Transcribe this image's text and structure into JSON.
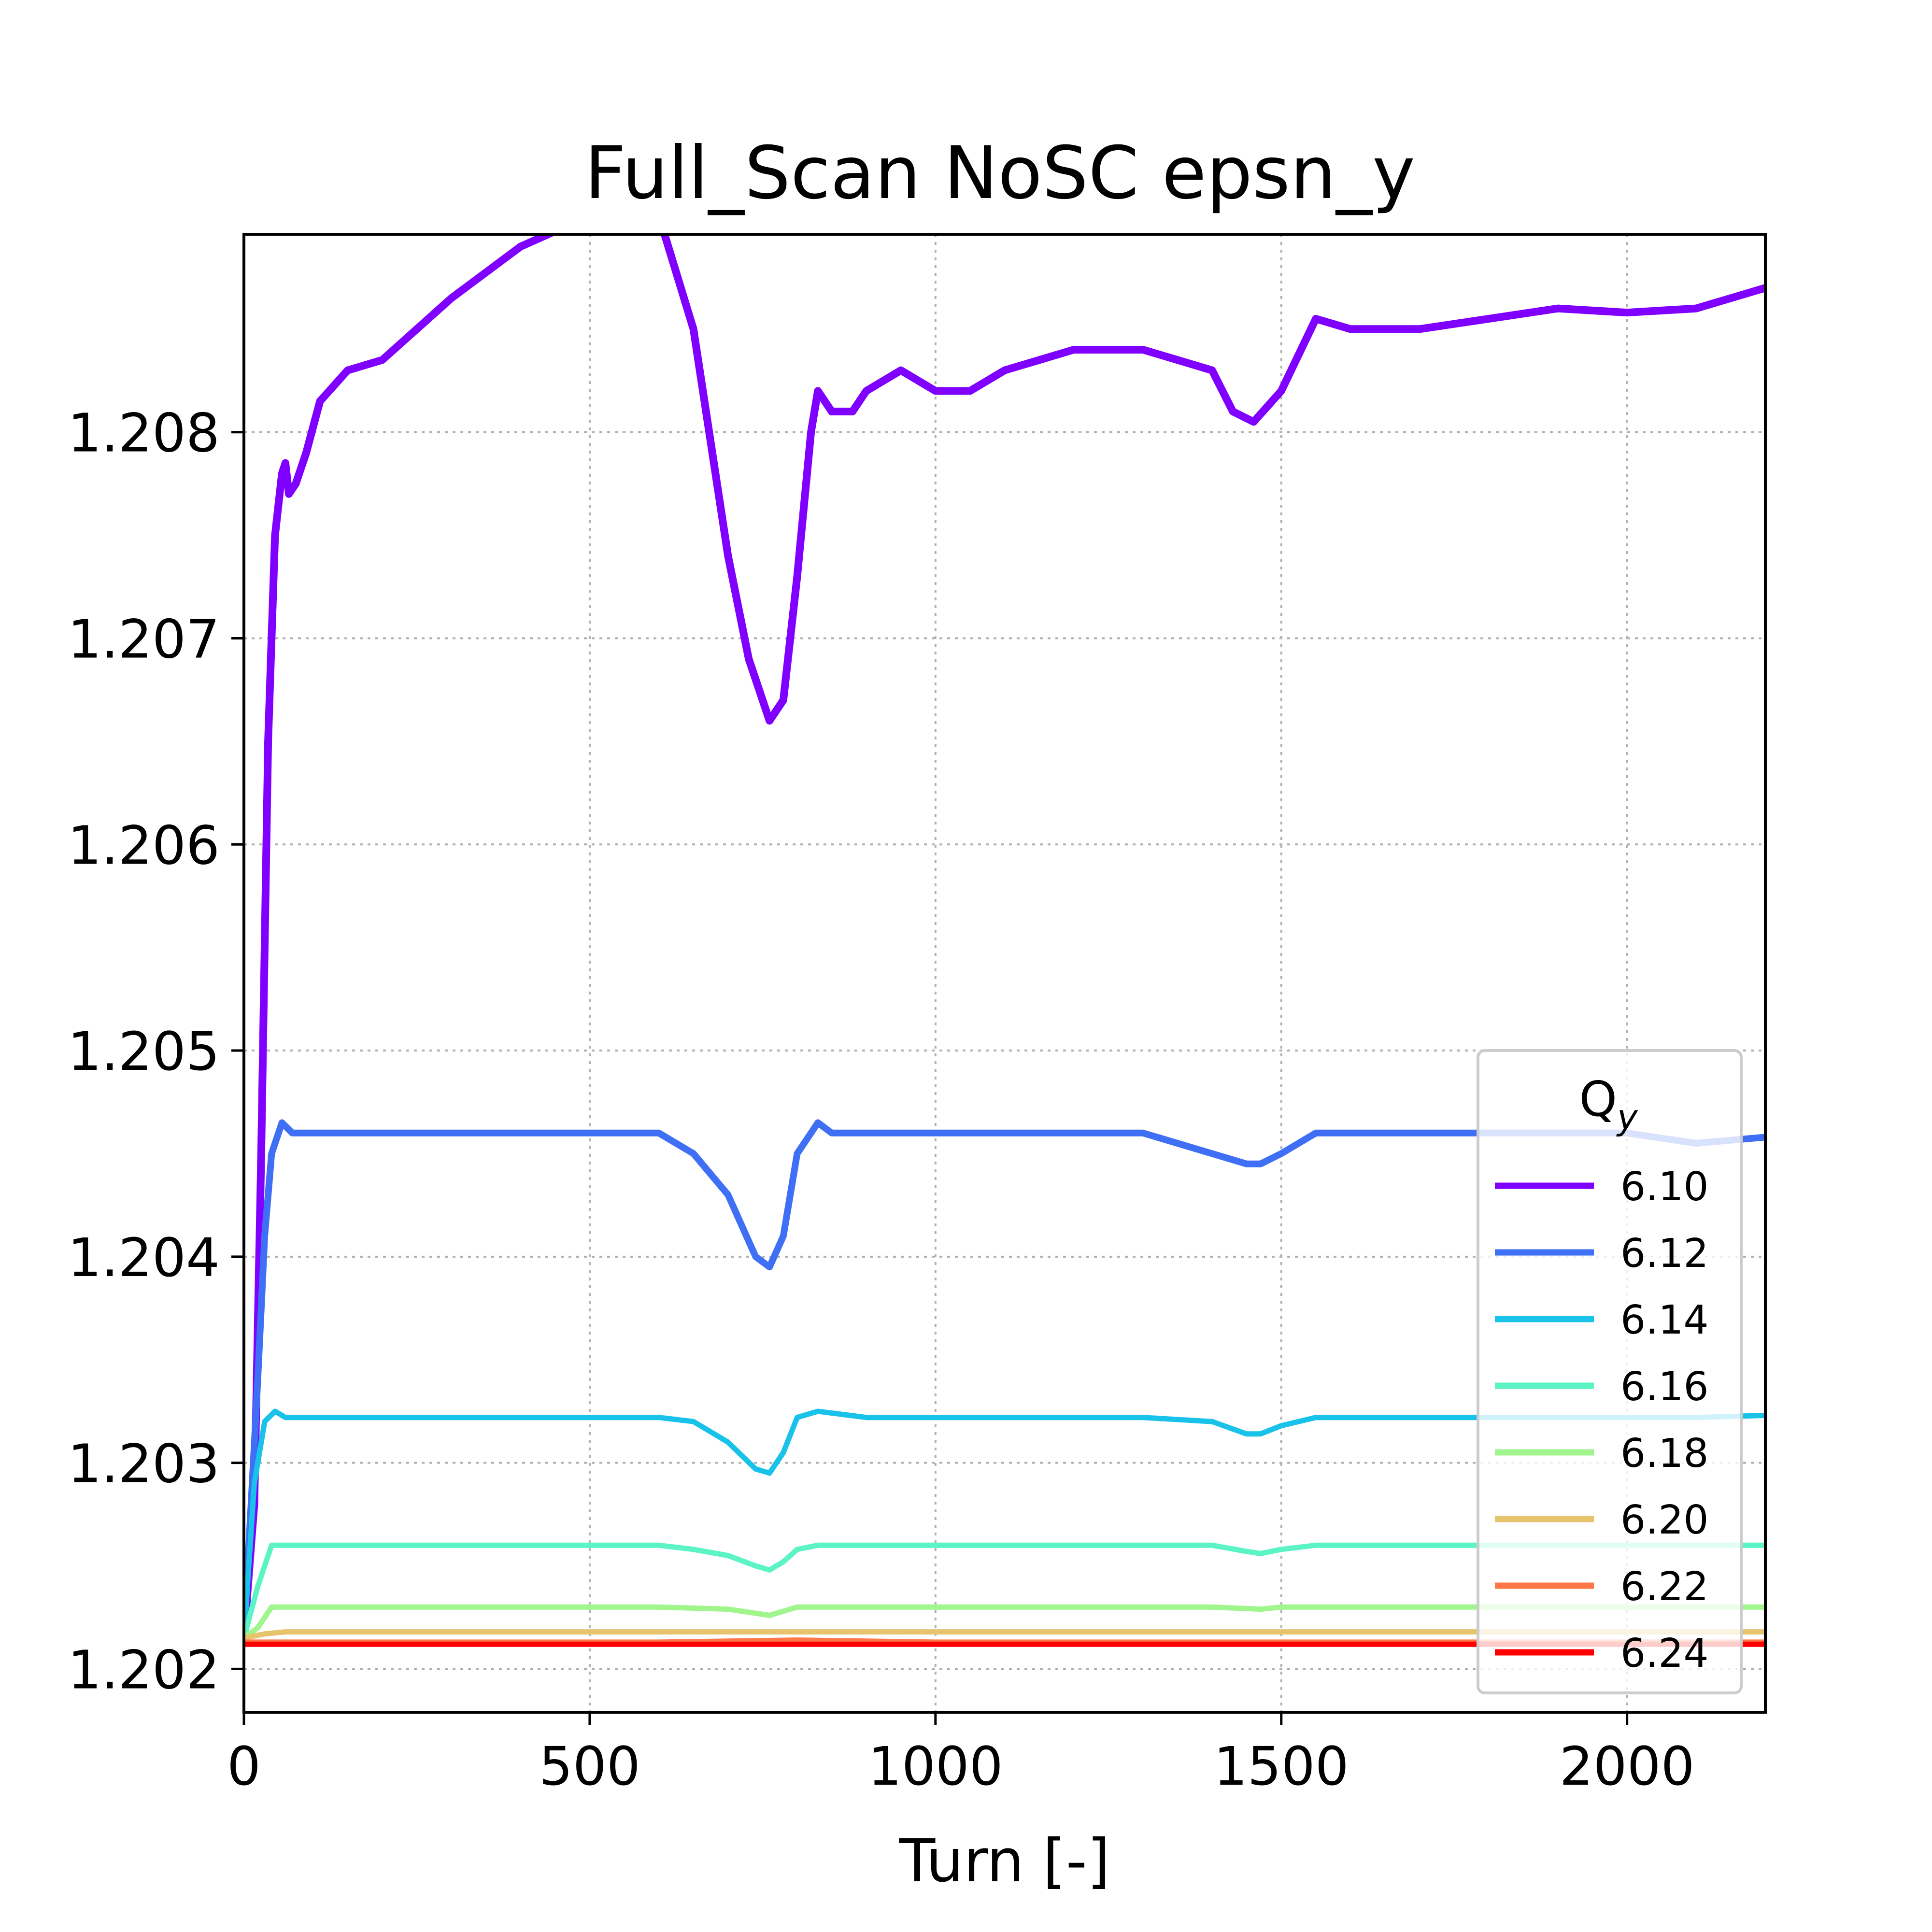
{
  "chart_data": {
    "type": "line",
    "title": "Full_Scan NoSC epsn_y",
    "xlabel": "Turn [-]",
    "ylabel": "",
    "xlim": [
      0,
      2200
    ],
    "ylim": [
      1.20179,
      1.20896
    ],
    "xticks": [
      0,
      500,
      1000,
      1500,
      2000
    ],
    "xtick_labels": [
      "0",
      "500",
      "1000",
      "1500",
      "2000"
    ],
    "yticks": [
      1.202,
      1.203,
      1.204,
      1.205,
      1.206,
      1.207,
      1.208
    ],
    "ytick_labels": [
      "1.202",
      "1.203",
      "1.204",
      "1.205",
      "1.206",
      "1.207",
      "1.208"
    ],
    "grid": true,
    "legend": {
      "title": "Q",
      "title_subscript": "y",
      "placement": "lower-right"
    },
    "series": [
      {
        "name": "6.10",
        "color": "#8000ff",
        "x": [
          0,
          15,
          25,
          35,
          45,
          55,
          60,
          65,
          75,
          90,
          110,
          150,
          200,
          300,
          400,
          500,
          550,
          600,
          650,
          700,
          730,
          760,
          780,
          800,
          820,
          830,
          850,
          880,
          900,
          950,
          1000,
          1050,
          1100,
          1200,
          1300,
          1400,
          1430,
          1460,
          1500,
          1550,
          1600,
          1700,
          1800,
          1900,
          2000,
          2100,
          2200
        ],
        "y": [
          1.20215,
          1.2028,
          1.2045,
          1.2065,
          1.2075,
          1.2078,
          1.20785,
          1.2077,
          1.20775,
          1.2079,
          1.20815,
          1.2083,
          1.20835,
          1.20865,
          1.2089,
          1.20905,
          1.2091,
          1.20905,
          1.2085,
          1.2074,
          1.2069,
          1.2066,
          1.2067,
          1.2073,
          1.208,
          1.2082,
          1.2081,
          1.2081,
          1.2082,
          1.2083,
          1.2082,
          1.2082,
          1.2083,
          1.2084,
          1.2084,
          1.2083,
          1.2081,
          1.20805,
          1.2082,
          1.20855,
          1.2085,
          1.2085,
          1.20855,
          1.2086,
          1.20858,
          1.2086,
          1.2087
        ]
      },
      {
        "name": "6.12",
        "color": "#3e6ff5",
        "x": [
          0,
          20,
          30,
          40,
          55,
          70,
          100,
          200,
          300,
          400,
          500,
          600,
          650,
          700,
          740,
          760,
          780,
          800,
          830,
          850,
          900,
          1000,
          1100,
          1200,
          1300,
          1400,
          1450,
          1470,
          1500,
          1550,
          1600,
          1700,
          1800,
          1900,
          2000,
          2100,
          2200
        ],
        "y": [
          1.20215,
          1.2034,
          1.2041,
          1.2045,
          1.20465,
          1.2046,
          1.2046,
          1.2046,
          1.2046,
          1.2046,
          1.2046,
          1.2046,
          1.2045,
          1.2043,
          1.204,
          1.20395,
          1.2041,
          1.2045,
          1.20465,
          1.2046,
          1.2046,
          1.2046,
          1.2046,
          1.2046,
          1.2046,
          1.2045,
          1.20445,
          1.20445,
          1.2045,
          1.2046,
          1.2046,
          1.2046,
          1.2046,
          1.2046,
          1.2046,
          1.20455,
          1.20458
        ]
      },
      {
        "name": "6.14",
        "color": "#18c2e8",
        "x": [
          0,
          15,
          30,
          45,
          60,
          100,
          200,
          300,
          400,
          500,
          600,
          650,
          700,
          740,
          760,
          780,
          800,
          830,
          900,
          1000,
          1100,
          1200,
          1300,
          1400,
          1450,
          1470,
          1500,
          1550,
          1600,
          1700,
          1800,
          1900,
          2000,
          2100,
          2200
        ],
        "y": [
          1.20215,
          1.2029,
          1.2032,
          1.20325,
          1.20322,
          1.20322,
          1.20322,
          1.20322,
          1.20322,
          1.20322,
          1.20322,
          1.2032,
          1.2031,
          1.20297,
          1.20295,
          1.20305,
          1.20322,
          1.20325,
          1.20322,
          1.20322,
          1.20322,
          1.20322,
          1.20322,
          1.2032,
          1.20314,
          1.20314,
          1.20318,
          1.20322,
          1.20322,
          1.20322,
          1.20322,
          1.20322,
          1.20322,
          1.20322,
          1.20323
        ]
      },
      {
        "name": "6.16",
        "color": "#5cf4c4",
        "x": [
          0,
          20,
          40,
          60,
          100,
          200,
          400,
          600,
          650,
          700,
          740,
          760,
          780,
          800,
          830,
          900,
          1000,
          1100,
          1200,
          1300,
          1400,
          1450,
          1470,
          1500,
          1550,
          1600,
          1800,
          2000,
          2200
        ],
        "y": [
          1.20215,
          1.2024,
          1.2026,
          1.2026,
          1.2026,
          1.2026,
          1.2026,
          1.2026,
          1.20258,
          1.20255,
          1.2025,
          1.20248,
          1.20252,
          1.20258,
          1.2026,
          1.2026,
          1.2026,
          1.2026,
          1.2026,
          1.2026,
          1.2026,
          1.20257,
          1.20256,
          1.20258,
          1.2026,
          1.2026,
          1.2026,
          1.2026,
          1.2026
        ]
      },
      {
        "name": "6.18",
        "color": "#a0f58c",
        "x": [
          0,
          20,
          40,
          60,
          100,
          200,
          400,
          600,
          700,
          740,
          760,
          780,
          800,
          830,
          900,
          1000,
          1200,
          1400,
          1470,
          1500,
          1550,
          1600,
          1800,
          2000,
          2200
        ],
        "y": [
          1.20215,
          1.2022,
          1.2023,
          1.2023,
          1.2023,
          1.2023,
          1.2023,
          1.2023,
          1.20229,
          1.20227,
          1.20226,
          1.20228,
          1.2023,
          1.2023,
          1.2023,
          1.2023,
          1.2023,
          1.2023,
          1.20229,
          1.2023,
          1.2023,
          1.2023,
          1.2023,
          1.2023,
          1.2023
        ]
      },
      {
        "name": "6.20",
        "color": "#e6c46e",
        "x": [
          0,
          30,
          60,
          100,
          200,
          400,
          600,
          800,
          1000,
          1200,
          1400,
          1600,
          1800,
          2000,
          2200
        ],
        "y": [
          1.20215,
          1.20217,
          1.20218,
          1.20218,
          1.20218,
          1.20218,
          1.20218,
          1.20218,
          1.20218,
          1.20218,
          1.20218,
          1.20218,
          1.20218,
          1.20218,
          1.20218
        ]
      },
      {
        "name": "6.22",
        "color": "#ff7746",
        "x": [
          0,
          200,
          400,
          600,
          800,
          1000,
          1200,
          1400,
          1600,
          1800,
          2000,
          2200
        ],
        "y": [
          1.20213,
          1.20213,
          1.20213,
          1.20213,
          1.20214,
          1.20213,
          1.20213,
          1.20213,
          1.20213,
          1.20213,
          1.20213,
          1.20213
        ]
      },
      {
        "name": "6.24",
        "color": "#ff0000",
        "x": [
          0,
          200,
          400,
          600,
          800,
          1000,
          1200,
          1400,
          1600,
          1800,
          2000,
          2200
        ],
        "y": [
          1.20212,
          1.20212,
          1.20212,
          1.20212,
          1.20212,
          1.20212,
          1.20212,
          1.20212,
          1.20212,
          1.20212,
          1.20212,
          1.20212
        ]
      }
    ]
  }
}
